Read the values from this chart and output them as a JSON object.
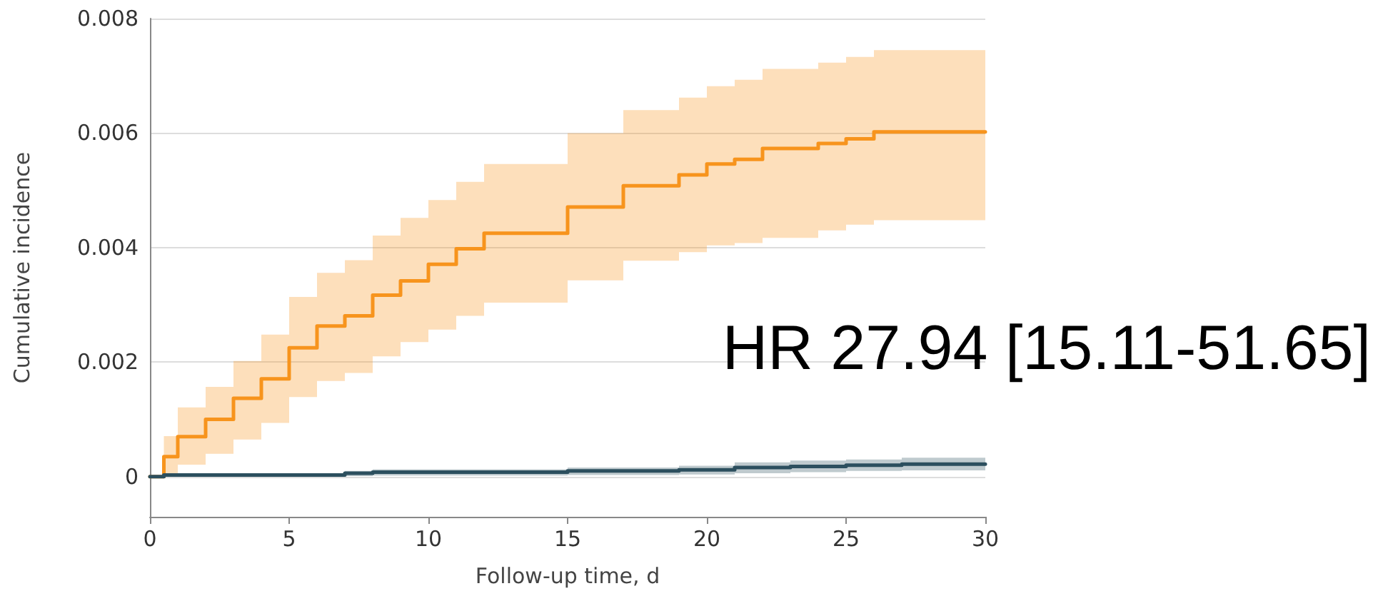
{
  "chart_data": {
    "type": "step",
    "xlabel": "Follow-up time, d",
    "ylabel": "Cumulative incidence",
    "annotations": [
      "HR 27.94 [15.11-51.65]"
    ],
    "xlim": [
      0,
      30
    ],
    "xticks": [
      0,
      5,
      10,
      15,
      20,
      25,
      30
    ],
    "ylim": [
      -0.0007,
      0.008
    ],
    "yticks": [
      0,
      0.002,
      0.004,
      0.006,
      0.008
    ],
    "grid": "y",
    "marker": "none",
    "line_style": "solid",
    "series": [
      {
        "color": "#f7941d",
        "x": [
          0,
          0.5,
          1,
          2,
          3,
          4,
          5,
          6,
          7,
          8,
          9,
          10,
          11,
          12,
          15,
          17,
          19,
          20,
          21,
          22,
          24,
          25,
          26,
          30
        ],
        "values": [
          0,
          0.00035,
          0.0007,
          0.001,
          0.00137,
          0.00171,
          0.00225,
          0.00263,
          0.00281,
          0.00317,
          0.00342,
          0.00371,
          0.00398,
          0.00425,
          0.00471,
          0.00508,
          0.00527,
          0.00546,
          0.00554,
          0.00573,
          0.00582,
          0.0059,
          0.00602,
          0.00602
        ],
        "lower": [
          0,
          0,
          0.00021,
          0.0004,
          0.00065,
          0.00094,
          0.00139,
          0.00167,
          0.00181,
          0.0021,
          0.00235,
          0.00257,
          0.00281,
          0.00304,
          0.00343,
          0.00377,
          0.00392,
          0.00404,
          0.00408,
          0.00417,
          0.0043,
          0.0044,
          0.00448,
          0.00448
        ],
        "upper": [
          0,
          0.00071,
          0.00121,
          0.00157,
          0.00202,
          0.00248,
          0.00314,
          0.00356,
          0.00378,
          0.00421,
          0.00452,
          0.00483,
          0.00515,
          0.00546,
          0.006,
          0.0064,
          0.00662,
          0.00682,
          0.00693,
          0.00712,
          0.00723,
          0.00733,
          0.00745,
          0.00745
        ]
      },
      {
        "color": "#2c4f5e",
        "x": [
          0,
          0.5,
          7,
          8,
          15,
          19,
          21,
          23,
          25,
          27,
          30
        ],
        "values": [
          0,
          3e-05,
          6e-05,
          8e-05,
          0.0001,
          0.00012,
          0.00016,
          0.00018,
          0.0002,
          0.00022,
          0.00022
        ],
        "lower": [
          0,
          0,
          1e-05,
          2e-05,
          3e-05,
          4e-05,
          6e-05,
          8e-05,
          0.0001,
          0.00011,
          0.00011
        ],
        "upper": [
          0,
          6e-05,
          0.0001,
          0.00013,
          0.00016,
          0.00019,
          0.00025,
          0.00028,
          0.0003,
          0.00033,
          0.00033
        ]
      }
    ]
  }
}
